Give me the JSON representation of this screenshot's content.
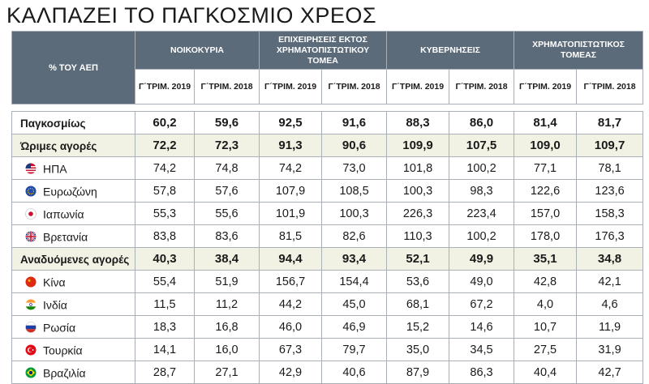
{
  "title": "ΚΑΛΠΑΖΕΙ ΤΟ ΠΑΓΚΟΣΜΙΟ ΧΡΕΟΣ",
  "corner_label": "% ΤΟΥ ΑΕΠ",
  "groups": [
    {
      "label": "ΝΟΙΚΟΚΥΡΙΑ"
    },
    {
      "label": "ΕΠΙΧΕΙΡΗΣΕΙΣ ΕΚΤΟΣ ΧΡΗΜΑΤΟΠΙΣΤΩΤΙΚΟΥ ΤΟΜΕΑ"
    },
    {
      "label": "ΚΥΒΕΡΝΗΣΕΙΣ"
    },
    {
      "label": "ΧΡΗΜΑΤΟΠΙΣΤΩΤΙΚΟΣ ΤΟΜΕΑΣ"
    }
  ],
  "sub_headers": [
    "Γ΄ΤΡΙΜ. 2019",
    "Γ΄ΤΡΙΜ. 2018",
    "Γ΄ΤΡΙΜ. 2019",
    "Γ΄ΤΡΙΜ. 2018",
    "Γ΄ΤΡΙΜ. 2019",
    "Γ΄ΤΡΙΜ. 2018",
    "Γ΄ΤΡΙΜ. 2019",
    "Γ΄ΤΡΙΜ. 2018"
  ],
  "rows": [
    {
      "label": "Παγκοσμίως",
      "values": [
        "60,2",
        "59,6",
        "92,5",
        "91,6",
        "88,3",
        "86,0",
        "81,4",
        "81,7"
      ]
    },
    {
      "label": "Ώριμες αγορές",
      "values": [
        "72,2",
        "72,3",
        "91,3",
        "90,6",
        "109,9",
        "107,5",
        "109,0",
        "109,7"
      ]
    },
    {
      "label": "ΗΠΑ",
      "flag": "usa-flag-icon",
      "values": [
        "74,2",
        "74,8",
        "74,2",
        "73,0",
        "101,8",
        "100,2",
        "77,1",
        "78,1"
      ]
    },
    {
      "label": "Ευρωζώνη",
      "flag": "eu-flag-icon",
      "values": [
        "57,8",
        "57,6",
        "107,9",
        "108,5",
        "100,3",
        "98,3",
        "122,6",
        "123,6"
      ]
    },
    {
      "label": "Ιαπωνία",
      "flag": "japan-flag-icon",
      "values": [
        "55,3",
        "55,6",
        "101,9",
        "100,3",
        "226,3",
        "223,4",
        "157,0",
        "158,3"
      ]
    },
    {
      "label": "Βρετανία",
      "flag": "uk-flag-icon",
      "values": [
        "83,8",
        "83,6",
        "81,5",
        "82,6",
        "110,3",
        "100,2",
        "178,0",
        "176,3"
      ]
    },
    {
      "label": "Αναδυόμενες αγορές",
      "values": [
        "40,3",
        "38,4",
        "94,4",
        "93,4",
        "52,1",
        "49,9",
        "35,1",
        "34,8"
      ]
    },
    {
      "label": "Κίνα",
      "flag": "china-flag-icon",
      "values": [
        "55,4",
        "51,9",
        "156,7",
        "154,4",
        "53,6",
        "49,0",
        "42,8",
        "42,1"
      ]
    },
    {
      "label": "Ινδία",
      "flag": "india-flag-icon",
      "values": [
        "11,5",
        "11,2",
        "44,2",
        "45,0",
        "68,1",
        "67,2",
        "4,0",
        "4,6"
      ]
    },
    {
      "label": "Ρωσία",
      "flag": "russia-flag-icon",
      "values": [
        "18,3",
        "16,8",
        "46,0",
        "46,9",
        "15,2",
        "14,6",
        "10,7",
        "11,9"
      ]
    },
    {
      "label": "Τουρκία",
      "flag": "turkey-flag-icon",
      "values": [
        "14,1",
        "16,0",
        "67,3",
        "79,7",
        "35,0",
        "34,5",
        "27,5",
        "31,9"
      ]
    },
    {
      "label": "Βραζιλία",
      "flag": "brazil-flag-icon",
      "values": [
        "28,7",
        "27,1",
        "42,9",
        "40,6",
        "87,9",
        "86,3",
        "40,4",
        "42,7"
      ]
    }
  ]
}
